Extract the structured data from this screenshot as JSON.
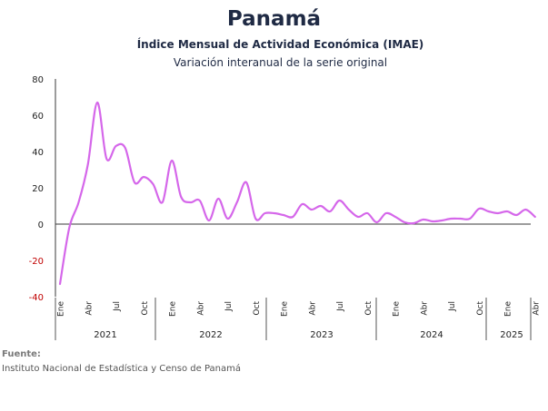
{
  "header": {
    "title": "Panamá",
    "subtitle": "Índice Mensual de Actividad Económica (IMAE)",
    "note": "Variación interanual de la serie original"
  },
  "source": {
    "label": "Fuente:",
    "text": "Instituto Nacional de Estadística y Censo de Panamá"
  },
  "colors": {
    "line": "#d567ea",
    "negative_tick": "#c00000",
    "axis": "#3a3a3a"
  },
  "chart_data": {
    "type": "line",
    "title": "Panamá",
    "ylim": [
      -40,
      80
    ],
    "yticks": [
      "80",
      "60",
      "40",
      "20",
      "0",
      "-20",
      "-40"
    ],
    "grid": false,
    "month_labels": [
      "Ene",
      "Abr",
      "Jul",
      "Oct",
      "Ene",
      "Abr",
      "Jul",
      "Oct",
      "Ene",
      "Abr",
      "Jul",
      "Oct",
      "Ene",
      "Abr",
      "Jul",
      "Oct",
      "Ene",
      "Abr"
    ],
    "years": [
      "2021",
      "2022",
      "2023",
      "2024",
      "2025"
    ],
    "x": [
      "2021-01",
      "2021-02",
      "2021-03",
      "2021-04",
      "2021-05",
      "2021-06",
      "2021-07",
      "2021-08",
      "2021-09",
      "2021-10",
      "2021-11",
      "2021-12",
      "2022-01",
      "2022-02",
      "2022-03",
      "2022-04",
      "2022-05",
      "2022-06",
      "2022-07",
      "2022-08",
      "2022-09",
      "2022-10",
      "2022-11",
      "2022-12",
      "2023-01",
      "2023-02",
      "2023-03",
      "2023-04",
      "2023-05",
      "2023-06",
      "2023-07",
      "2023-08",
      "2023-09",
      "2023-10",
      "2023-11",
      "2023-12",
      "2024-01",
      "2024-02",
      "2024-03",
      "2024-04",
      "2024-05",
      "2024-06",
      "2024-07",
      "2024-08",
      "2024-09",
      "2024-10",
      "2024-11",
      "2024-12",
      "2025-01",
      "2025-02",
      "2025-03",
      "2025-04"
    ],
    "series": [
      {
        "values": [
          -33,
          -2,
          12,
          33,
          67,
          36,
          43,
          42,
          23,
          26,
          22,
          12,
          35,
          15,
          12,
          13,
          2,
          14,
          3,
          12,
          23,
          3,
          6,
          6,
          5,
          4,
          11,
          8,
          10,
          7,
          13,
          8,
          4,
          6,
          1,
          6,
          4,
          1,
          0.5,
          2.5,
          1.5,
          2,
          3,
          3,
          3,
          8.5,
          7,
          6,
          7,
          5,
          8,
          4
        ]
      }
    ]
  }
}
